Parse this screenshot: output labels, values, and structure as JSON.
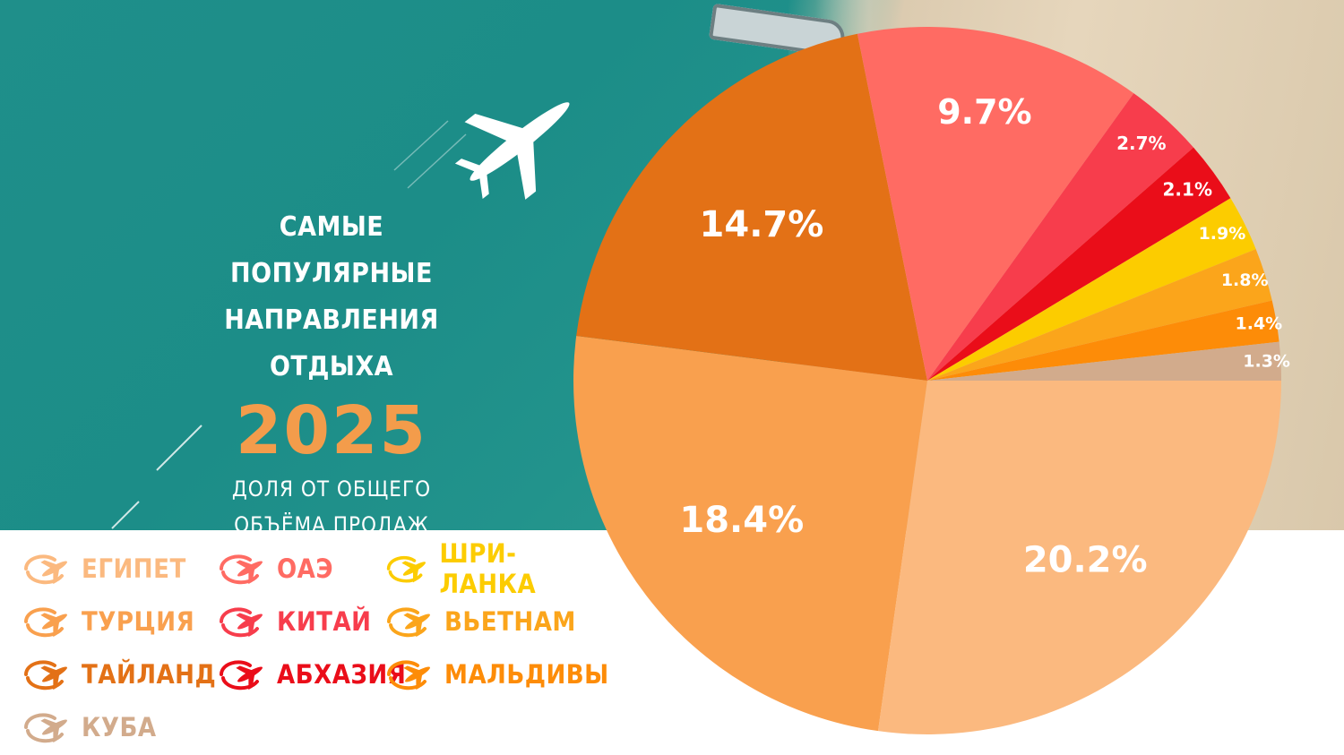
{
  "header": {
    "title_lines": [
      "САМЫЕ",
      "ПОПУЛЯРНЫЕ НАПРАВЛЕНИЯ",
      "ОТДЫХА"
    ],
    "year": "2025",
    "subtitle_lines": [
      "ДОЛЯ ОТ ОБЩЕГО",
      "ОБЪЁМА ПРОДАЖ"
    ]
  },
  "chart_data": {
    "type": "pie",
    "unit": "%",
    "series": [
      {
        "name": "ЕГИПЕТ",
        "value": 20.2,
        "label": "20.2%",
        "color": "#fbb97f"
      },
      {
        "name": "ТУРЦИЯ",
        "value": 18.4,
        "label": "18.4%",
        "color": "#f9a04e"
      },
      {
        "name": "ТАЙЛАНД",
        "value": 14.7,
        "label": "14.7%",
        "color": "#e37116"
      },
      {
        "name": "ОАЭ",
        "value": 9.7,
        "label": "9.7%",
        "color": "#ff6b63"
      },
      {
        "name": "КИТАЙ",
        "value": 2.7,
        "label": "2.7%",
        "color": "#f73d4c"
      },
      {
        "name": "АБХАЗИЯ",
        "value": 2.1,
        "label": "2.1%",
        "color": "#ea0d19"
      },
      {
        "name": "ШРИ-ЛАНКА",
        "value": 1.9,
        "label": "1.9%",
        "color": "#fccc00"
      },
      {
        "name": "ВЬЕТНАМ",
        "value": 1.8,
        "label": "1.8%",
        "color": "#fba51b"
      },
      {
        "name": "МАЛЬДИВЫ",
        "value": 1.4,
        "label": "1.4%",
        "color": "#fd8c08"
      },
      {
        "name": "КУБА",
        "value": 1.3,
        "label": "1.3%",
        "color": "#d2ab8c"
      }
    ],
    "legend_placement": "bottom-left"
  },
  "legend": {
    "items": [
      {
        "label": "ЕГИПЕТ",
        "color": "#fbb97f"
      },
      {
        "label": "ТУРЦИЯ",
        "color": "#f9a04e"
      },
      {
        "label": "ТАЙЛАНД",
        "color": "#e37116"
      },
      {
        "label": "КУБА",
        "color": "#d2ab8c"
      },
      {
        "label": "ОАЭ",
        "color": "#ff6b63"
      },
      {
        "label": "КИТАЙ",
        "color": "#f73d4c"
      },
      {
        "label": "АБХАЗИЯ",
        "color": "#ea0d19"
      },
      {
        "label": "ШРИ-ЛАНКА",
        "color": "#fccc00"
      },
      {
        "label": "ВЬЕТНАМ",
        "color": "#fba51b"
      },
      {
        "label": "МАЛЬДИВЫ",
        "color": "#fd8c08"
      }
    ]
  }
}
